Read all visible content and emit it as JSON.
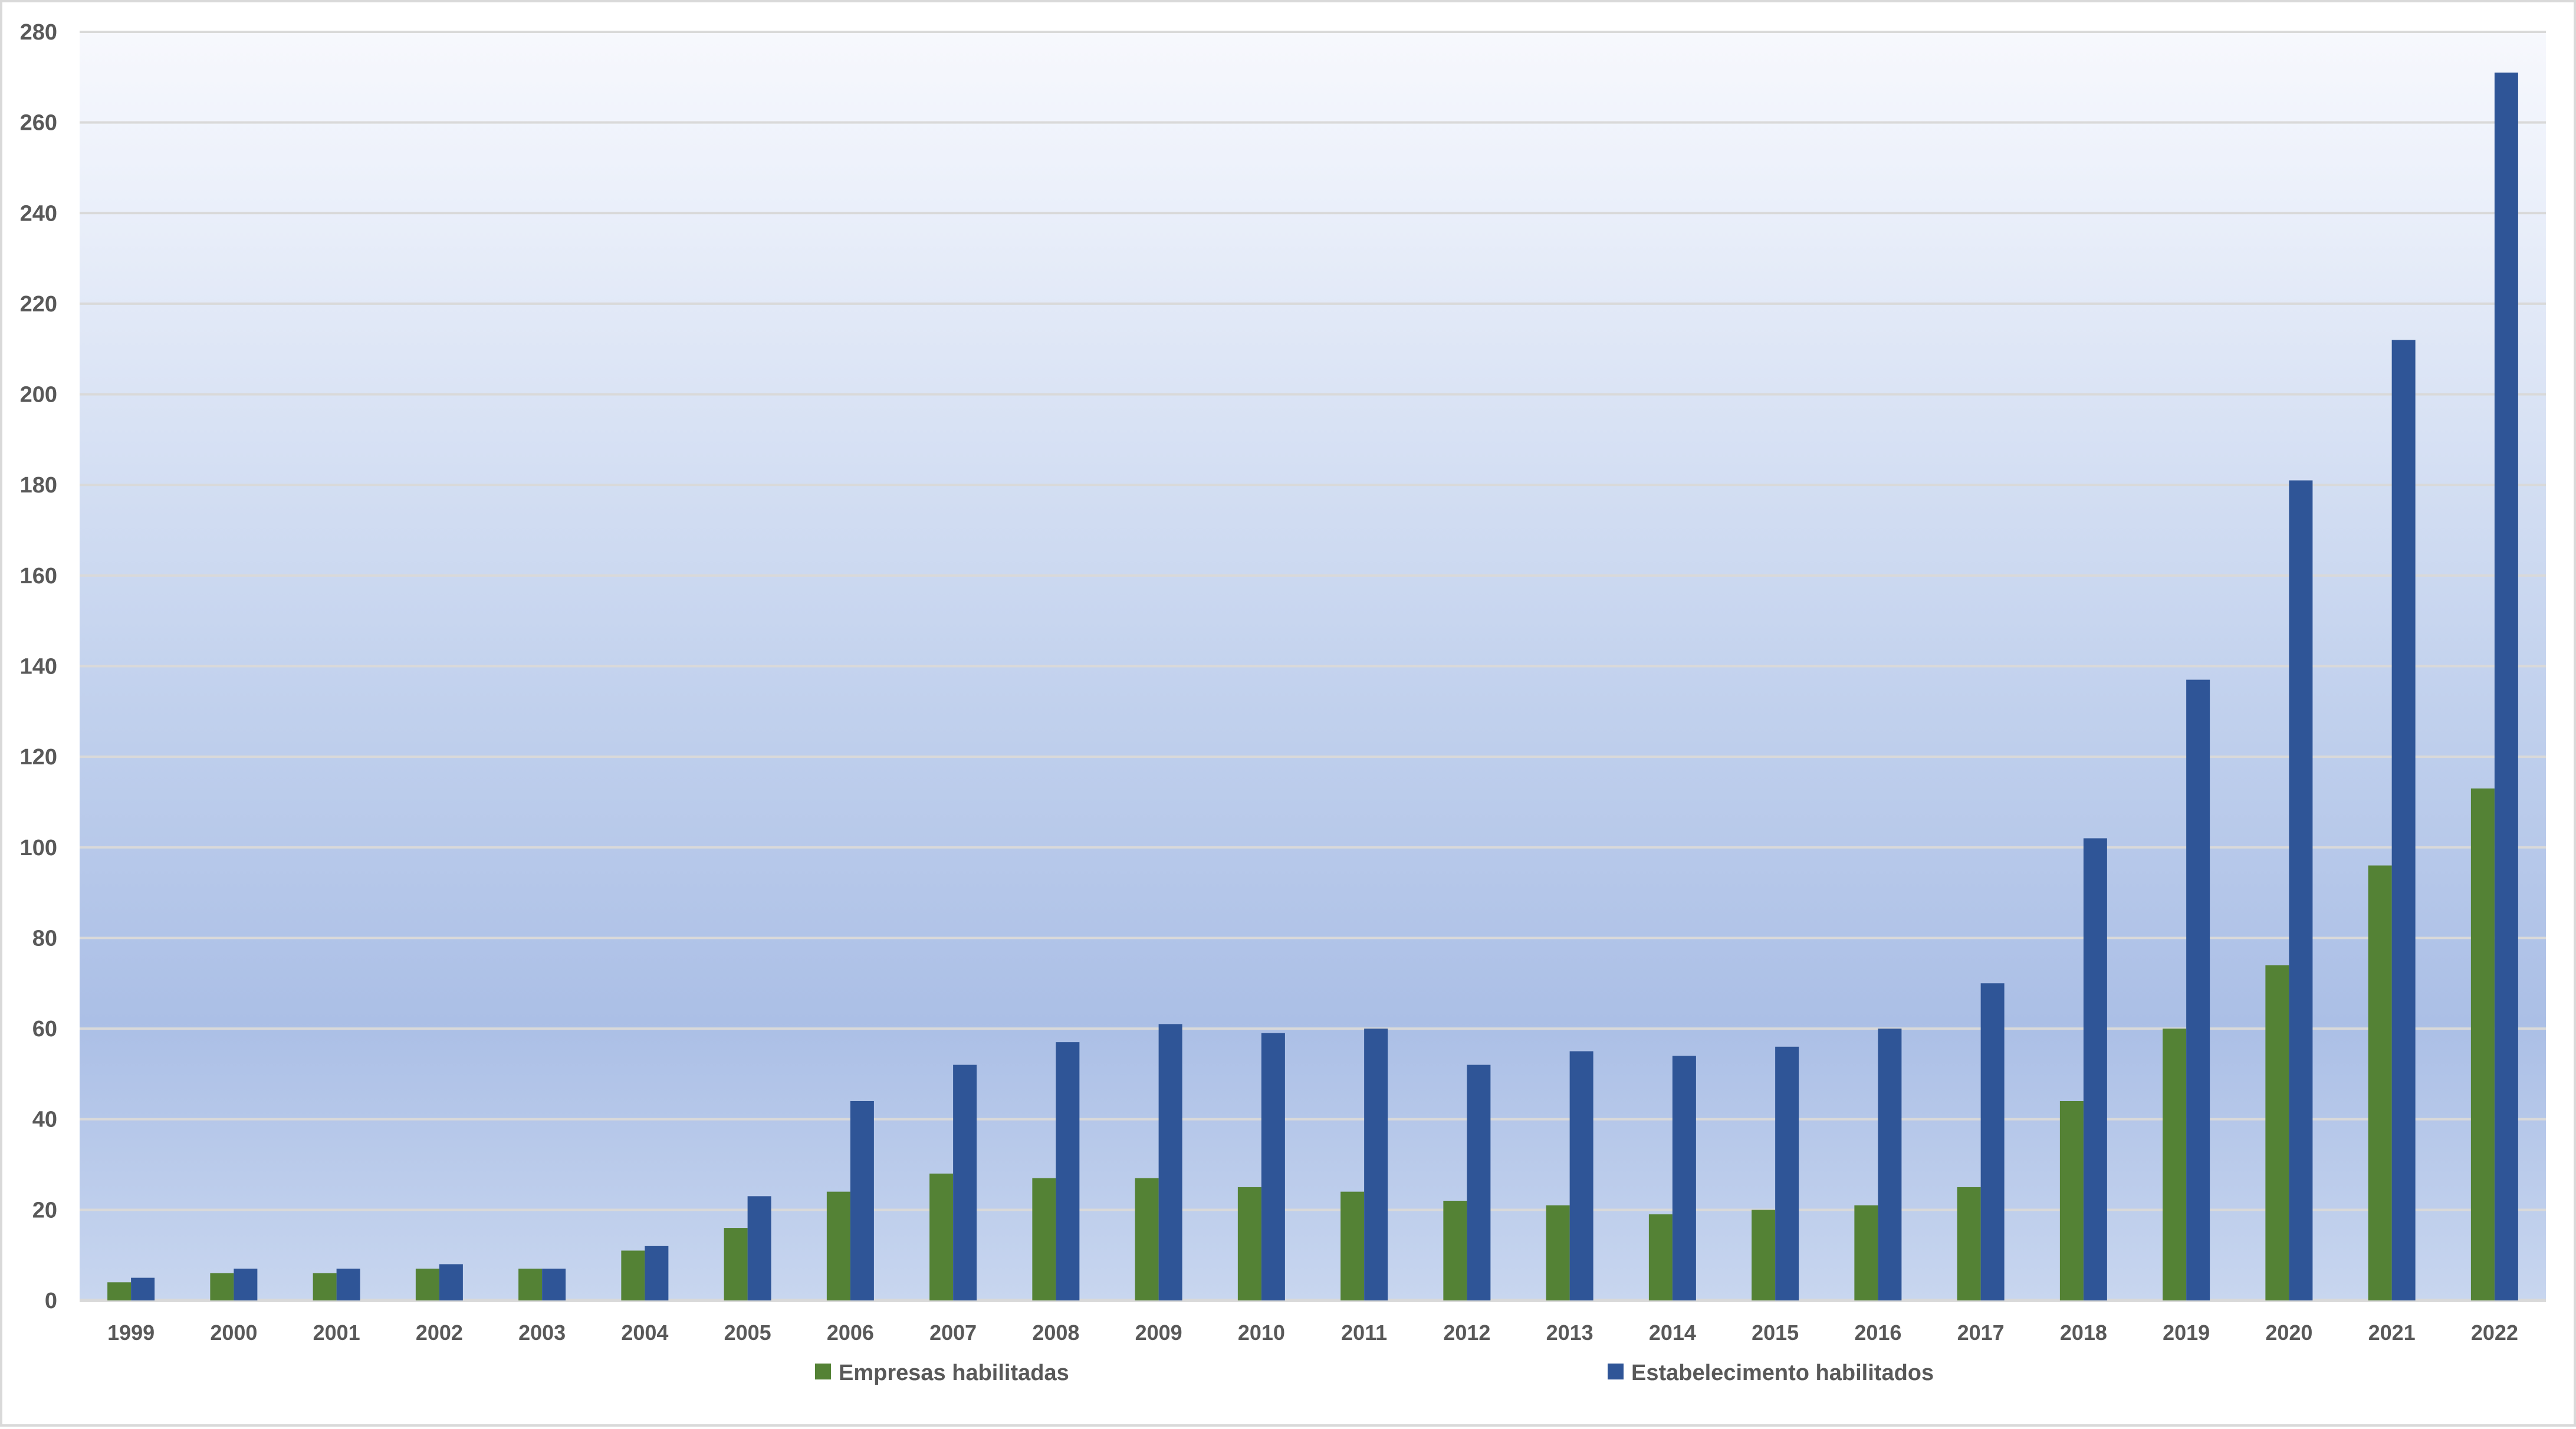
{
  "chart_data": {
    "type": "bar",
    "title": "",
    "xlabel": "",
    "ylabel": "",
    "ylim": [
      0,
      280
    ],
    "yticks": [
      0,
      20,
      40,
      60,
      80,
      100,
      120,
      140,
      160,
      180,
      200,
      220,
      240,
      260,
      280
    ],
    "grid": true,
    "legend_position": "bottom",
    "categories": [
      "1999",
      "2000",
      "2001",
      "2002",
      "2003",
      "2004",
      "2005",
      "2006",
      "2007",
      "2008",
      "2009",
      "2010",
      "2011",
      "2012",
      "2013",
      "2014",
      "2015",
      "2016",
      "2017",
      "2018",
      "2019",
      "2020",
      "2021",
      "2022"
    ],
    "series": [
      {
        "name": "Empresas habilitadas",
        "color": "#548235",
        "values": [
          4,
          6,
          6,
          7,
          7,
          11,
          16,
          24,
          28,
          27,
          27,
          25,
          24,
          22,
          21,
          19,
          20,
          21,
          25,
          44,
          60,
          74,
          96,
          113
        ]
      },
      {
        "name": "Estabelecimento habilitados",
        "color": "#2f5597",
        "values": [
          5,
          7,
          7,
          8,
          7,
          12,
          23,
          44,
          52,
          57,
          61,
          59,
          60,
          52,
          55,
          54,
          56,
          60,
          70,
          102,
          137,
          181,
          212,
          271
        ]
      }
    ]
  }
}
